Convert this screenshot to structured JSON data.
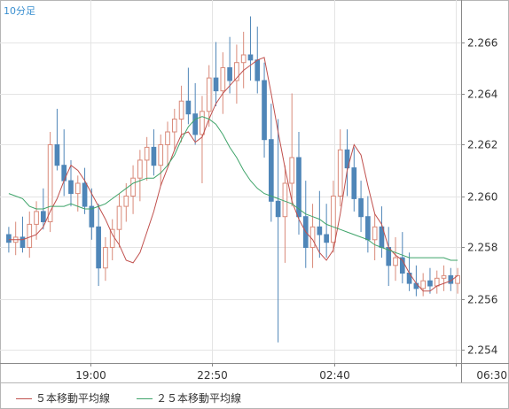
{
  "chart_data": {
    "type": "candlestick",
    "period_label": "10分足",
    "x_ticks": [
      "19:00",
      "22:50",
      "02:40",
      "06:30"
    ],
    "y_ticks": [
      "2.254",
      "2.256",
      "2.258",
      "2.260",
      "2.262",
      "2.264",
      "2.266"
    ],
    "ylim": [
      2.2535,
      2.2675
    ],
    "grid": true,
    "legend_placement": "bottom",
    "colors": {
      "up_candle": "#d98a7a",
      "down_candle": "#4f86b8",
      "ma5": "#c0504d",
      "ma25": "#3fa46a",
      "grid": "#e4e4e4",
      "axis": "#888888"
    },
    "series": [
      {
        "name": "５本移動平均線",
        "color": "#c0504d",
        "values": [
          2.2583,
          2.2583,
          2.2583,
          2.2584,
          2.2585,
          2.2588,
          2.2594,
          2.2599,
          2.2606,
          2.2612,
          2.261,
          2.2606,
          2.2601,
          2.2596,
          2.2591,
          2.2585,
          2.2581,
          2.2575,
          2.2574,
          2.2578,
          2.2586,
          2.2594,
          2.2604,
          2.2611,
          2.2618,
          2.2624,
          2.2625,
          2.2621,
          2.2623,
          2.263,
          2.2636,
          2.264,
          2.2643,
          2.2646,
          2.2649,
          2.2651,
          2.2653,
          2.2654,
          2.264,
          2.2625,
          2.2611,
          2.2598,
          2.2591,
          2.2586,
          2.2583,
          2.2578,
          2.2575,
          2.2579,
          2.2593,
          2.261,
          2.262,
          2.2616,
          2.2604,
          2.2593,
          2.2589,
          2.258,
          2.2577,
          2.2575,
          2.257,
          2.2566,
          2.2563,
          2.2563,
          2.2565,
          2.2566,
          2.2567,
          2.2569
        ]
      },
      {
        "name": "２５本移動平均線",
        "color": "#3fa46a",
        "values": [
          2.2601,
          2.26,
          2.2599,
          2.2596,
          2.2595,
          2.2595,
          2.2596,
          2.2596,
          2.2596,
          2.2597,
          2.2596,
          2.2595,
          2.2595,
          2.2596,
          2.2597,
          2.2599,
          2.2601,
          2.2603,
          2.2605,
          2.2606,
          2.2607,
          2.2607,
          2.2609,
          2.2612,
          2.2616,
          2.2622,
          2.2627,
          2.263,
          2.2631,
          2.263,
          2.2628,
          2.2624,
          2.2619,
          2.2615,
          2.261,
          2.2606,
          2.2603,
          2.2601,
          2.26,
          2.2599,
          2.2598,
          2.2597,
          2.2595,
          2.2593,
          2.2592,
          2.2591,
          2.2589,
          2.2588,
          2.2587,
          2.2586,
          2.2585,
          2.2584,
          2.2583,
          2.2581,
          2.258,
          2.2579,
          2.2578,
          2.2577,
          2.2576,
          2.2576,
          2.2576,
          2.2576,
          2.2576,
          2.2576,
          2.2575,
          2.2575
        ]
      }
    ],
    "candles": [
      {
        "o": 2.2585,
        "h": 2.2588,
        "l": 2.2578,
        "c": 2.2582
      },
      {
        "o": 2.2582,
        "h": 2.259,
        "l": 2.2577,
        "c": 2.2584
      },
      {
        "o": 2.2584,
        "h": 2.2592,
        "l": 2.2578,
        "c": 2.258
      },
      {
        "o": 2.258,
        "h": 2.2594,
        "l": 2.2576,
        "c": 2.2589
      },
      {
        "o": 2.2589,
        "h": 2.2598,
        "l": 2.2583,
        "c": 2.2594
      },
      {
        "o": 2.2594,
        "h": 2.2603,
        "l": 2.2587,
        "c": 2.259
      },
      {
        "o": 2.259,
        "h": 2.2625,
        "l": 2.2586,
        "c": 2.262
      },
      {
        "o": 2.262,
        "h": 2.2634,
        "l": 2.261,
        "c": 2.2612
      },
      {
        "o": 2.2612,
        "h": 2.2626,
        "l": 2.26,
        "c": 2.2606
      },
      {
        "o": 2.2606,
        "h": 2.2614,
        "l": 2.2596,
        "c": 2.2601
      },
      {
        "o": 2.2601,
        "h": 2.2608,
        "l": 2.2594,
        "c": 2.2605
      },
      {
        "o": 2.2605,
        "h": 2.2611,
        "l": 2.2593,
        "c": 2.2596
      },
      {
        "o": 2.2596,
        "h": 2.2603,
        "l": 2.2583,
        "c": 2.2588
      },
      {
        "o": 2.2588,
        "h": 2.2597,
        "l": 2.2565,
        "c": 2.2572
      },
      {
        "o": 2.2572,
        "h": 2.2584,
        "l": 2.2567,
        "c": 2.258
      },
      {
        "o": 2.258,
        "h": 2.2591,
        "l": 2.2575,
        "c": 2.2587
      },
      {
        "o": 2.2587,
        "h": 2.2601,
        "l": 2.258,
        "c": 2.2596
      },
      {
        "o": 2.2596,
        "h": 2.2605,
        "l": 2.259,
        "c": 2.26
      },
      {
        "o": 2.26,
        "h": 2.2612,
        "l": 2.2593,
        "c": 2.2607
      },
      {
        "o": 2.2607,
        "h": 2.2618,
        "l": 2.2598,
        "c": 2.2614
      },
      {
        "o": 2.2614,
        "h": 2.2623,
        "l": 2.2606,
        "c": 2.2619
      },
      {
        "o": 2.2619,
        "h": 2.2626,
        "l": 2.2608,
        "c": 2.2612
      },
      {
        "o": 2.2612,
        "h": 2.2624,
        "l": 2.2604,
        "c": 2.262
      },
      {
        "o": 2.262,
        "h": 2.2629,
        "l": 2.2612,
        "c": 2.2625
      },
      {
        "o": 2.2625,
        "h": 2.2634,
        "l": 2.2618,
        "c": 2.263
      },
      {
        "o": 2.263,
        "h": 2.2643,
        "l": 2.2621,
        "c": 2.2637
      },
      {
        "o": 2.2637,
        "h": 2.265,
        "l": 2.2628,
        "c": 2.2632
      },
      {
        "o": 2.2632,
        "h": 2.2644,
        "l": 2.262,
        "c": 2.2624
      },
      {
        "o": 2.2624,
        "h": 2.2639,
        "l": 2.2605,
        "c": 2.2633
      },
      {
        "o": 2.2633,
        "h": 2.2651,
        "l": 2.2627,
        "c": 2.2646
      },
      {
        "o": 2.2646,
        "h": 2.266,
        "l": 2.2635,
        "c": 2.2641
      },
      {
        "o": 2.2641,
        "h": 2.2656,
        "l": 2.2632,
        "c": 2.265
      },
      {
        "o": 2.265,
        "h": 2.2662,
        "l": 2.264,
        "c": 2.2645
      },
      {
        "o": 2.2645,
        "h": 2.2659,
        "l": 2.2636,
        "c": 2.2652
      },
      {
        "o": 2.2652,
        "h": 2.2664,
        "l": 2.2642,
        "c": 2.2655
      },
      {
        "o": 2.2655,
        "h": 2.267,
        "l": 2.2645,
        "c": 2.2653
      },
      {
        "o": 2.2653,
        "h": 2.2666,
        "l": 2.264,
        "c": 2.2645
      },
      {
        "o": 2.2645,
        "h": 2.2652,
        "l": 2.2615,
        "c": 2.2622
      },
      {
        "o": 2.2622,
        "h": 2.2636,
        "l": 2.259,
        "c": 2.2598
      },
      {
        "o": 2.2598,
        "h": 2.263,
        "l": 2.2543,
        "c": 2.2592
      },
      {
        "o": 2.2592,
        "h": 2.2612,
        "l": 2.2574,
        "c": 2.2605
      },
      {
        "o": 2.2605,
        "h": 2.264,
        "l": 2.2596,
        "c": 2.2615
      },
      {
        "o": 2.2615,
        "h": 2.2625,
        "l": 2.2585,
        "c": 2.2592
      },
      {
        "o": 2.2592,
        "h": 2.2606,
        "l": 2.2572,
        "c": 2.258
      },
      {
        "o": 2.258,
        "h": 2.2597,
        "l": 2.2572,
        "c": 2.2588
      },
      {
        "o": 2.2588,
        "h": 2.2602,
        "l": 2.2576,
        "c": 2.2585
      },
      {
        "o": 2.2585,
        "h": 2.2597,
        "l": 2.2576,
        "c": 2.2582
      },
      {
        "o": 2.2582,
        "h": 2.2606,
        "l": 2.2578,
        "c": 2.26
      },
      {
        "o": 2.26,
        "h": 2.2626,
        "l": 2.2596,
        "c": 2.2618
      },
      {
        "o": 2.2618,
        "h": 2.2626,
        "l": 2.26,
        "c": 2.2611
      },
      {
        "o": 2.2611,
        "h": 2.2619,
        "l": 2.2594,
        "c": 2.2599
      },
      {
        "o": 2.2599,
        "h": 2.2606,
        "l": 2.2586,
        "c": 2.2592
      },
      {
        "o": 2.2592,
        "h": 2.26,
        "l": 2.2578,
        "c": 2.2583
      },
      {
        "o": 2.2583,
        "h": 2.2593,
        "l": 2.2575,
        "c": 2.2588
      },
      {
        "o": 2.2588,
        "h": 2.2596,
        "l": 2.2576,
        "c": 2.258
      },
      {
        "o": 2.258,
        "h": 2.2588,
        "l": 2.2565,
        "c": 2.2573
      },
      {
        "o": 2.2573,
        "h": 2.2584,
        "l": 2.2567,
        "c": 2.2576
      },
      {
        "o": 2.2576,
        "h": 2.2586,
        "l": 2.2566,
        "c": 2.257
      },
      {
        "o": 2.257,
        "h": 2.2578,
        "l": 2.2563,
        "c": 2.2566
      },
      {
        "o": 2.2566,
        "h": 2.2573,
        "l": 2.2561,
        "c": 2.2564
      },
      {
        "o": 2.2564,
        "h": 2.257,
        "l": 2.2561,
        "c": 2.2567
      },
      {
        "o": 2.2567,
        "h": 2.2572,
        "l": 2.2562,
        "c": 2.2565
      },
      {
        "o": 2.2565,
        "h": 2.2571,
        "l": 2.2562,
        "c": 2.2568
      },
      {
        "o": 2.2568,
        "h": 2.2573,
        "l": 2.2563,
        "c": 2.2569
      },
      {
        "o": 2.2569,
        "h": 2.2572,
        "l": 2.2563,
        "c": 2.2566
      },
      {
        "o": 2.2566,
        "h": 2.2572,
        "l": 2.2562,
        "c": 2.2569
      }
    ]
  }
}
